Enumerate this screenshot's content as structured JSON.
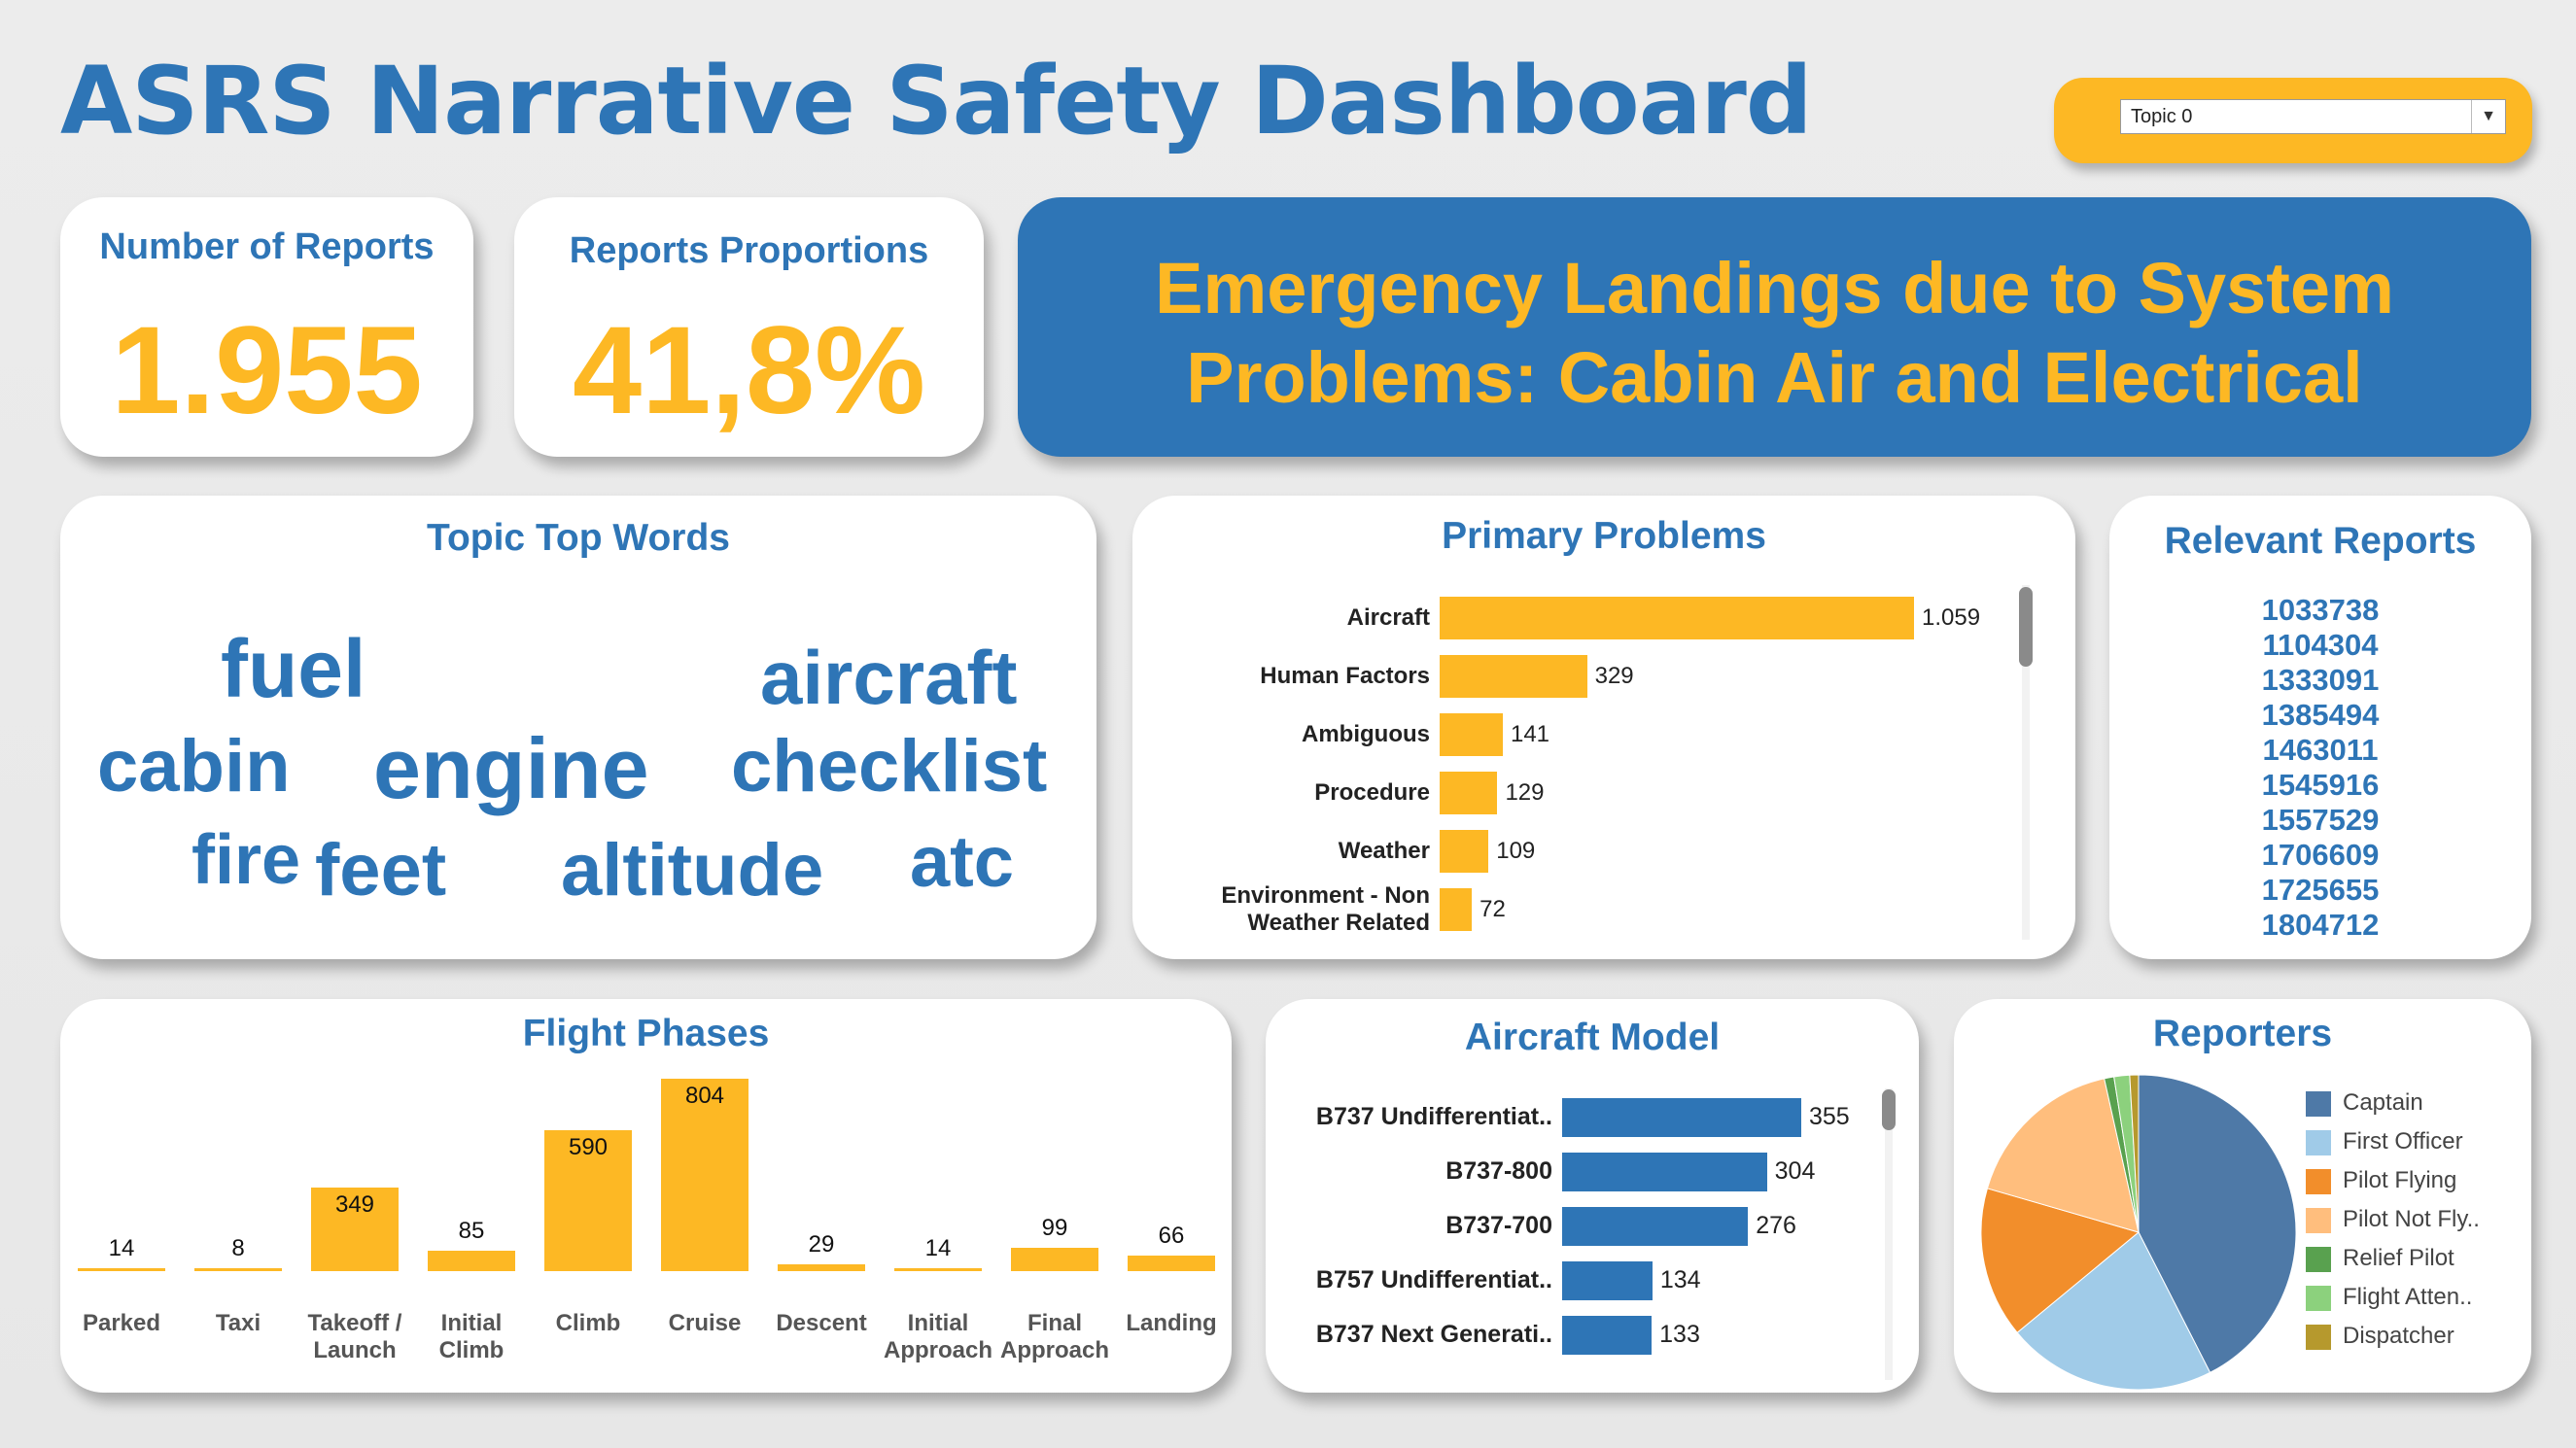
{
  "title": "ASRS Narrative Safety Dashboard",
  "dropdown": {
    "value": "Topic 0",
    "arrow": "▼"
  },
  "kpis": {
    "reports_label": "Number of Reports",
    "reports_value": "1.955",
    "proportion_label": "Reports Proportions",
    "proportion_value": "41,8%"
  },
  "headline": {
    "line1": "Emergency Landings due to System",
    "line2": "Problems: Cabin Air and Electrical"
  },
  "top_words": {
    "title": "Topic Top Words",
    "words": [
      "fuel",
      "aircraft",
      "cabin",
      "engine",
      "checklist",
      "fire",
      "feet",
      "altitude",
      "atc"
    ]
  },
  "primary_problems": {
    "title": "Primary Problems",
    "categories": [
      "Aircraft",
      "Human Factors",
      "Ambiguous",
      "Procedure",
      "Weather",
      "Environment - Non Weather Related"
    ],
    "label_lines": [
      [
        "Aircraft"
      ],
      [
        "Human Factors"
      ],
      [
        "Ambiguous"
      ],
      [
        "Procedure"
      ],
      [
        "Weather"
      ],
      [
        "Environment - Non",
        "Weather Related"
      ]
    ],
    "values": [
      1059,
      329,
      141,
      129,
      109,
      72
    ],
    "value_labels": [
      "1.059",
      "329",
      "141",
      "129",
      "109",
      "72"
    ]
  },
  "relevant_reports": {
    "title": "Relevant Reports",
    "ids": [
      "1033738",
      "1104304",
      "1333091",
      "1385494",
      "1463011",
      "1545916",
      "1557529",
      "1706609",
      "1725655",
      "1804712"
    ]
  },
  "chart_data": [
    {
      "type": "bar",
      "title": "Flight Phases",
      "categories": [
        "Parked",
        "Taxi",
        "Takeoff / Launch",
        "Initial Climb",
        "Climb",
        "Cruise",
        "Descent",
        "Initial Approach",
        "Final Approach",
        "Landing"
      ],
      "values": [
        14,
        8,
        349,
        85,
        590,
        804,
        29,
        14,
        99,
        66
      ]
    },
    {
      "type": "bar",
      "title": "Aircraft Model",
      "categories": [
        "B737 Undifferentiat..",
        "B737-800",
        "B737-700",
        "B757 Undifferentiat..",
        "B737 Next Generati.."
      ],
      "values": [
        355,
        304,
        276,
        134,
        133
      ]
    },
    {
      "type": "pie",
      "title": "Reporters",
      "labels": [
        "Captain",
        "First Officer",
        "Pilot Flying",
        "Pilot Not Fly..",
        "Relief Pilot",
        "Flight Atten..",
        "Dispatcher"
      ],
      "values": [
        42.5,
        21.5,
        15.5,
        17.0,
        1.0,
        1.6,
        0.9
      ],
      "colors": [
        "#4e79a7",
        "#a0cbe8",
        "#f28e2b",
        "#ffbe7d",
        "#59a14f",
        "#8cd17d",
        "#b6992d"
      ],
      "legend": "right"
    }
  ],
  "flight_phase_label_lines": [
    [
      "Parked"
    ],
    [
      "Taxi"
    ],
    [
      "Takeoff /",
      "Launch"
    ],
    [
      "Initial",
      "Climb"
    ],
    [
      "Climb"
    ],
    [
      "Cruise"
    ],
    [
      "Descent"
    ],
    [
      "Initial",
      "Approach"
    ],
    [
      "Final",
      "Approach"
    ],
    [
      "Landing"
    ]
  ]
}
